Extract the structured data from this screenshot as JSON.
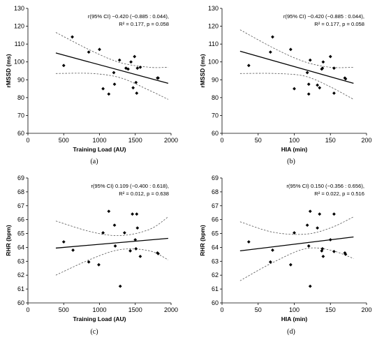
{
  "chart_data": [
    {
      "type": "scatter",
      "panel_label": "(a)",
      "xlabel": "Training Load (AU)",
      "ylabel": "rMSSD (ms)",
      "xlim": [
        0,
        2000
      ],
      "ylim": [
        60,
        130
      ],
      "xticks": [
        0,
        500,
        1000,
        1500,
        2000
      ],
      "yticks": [
        60,
        70,
        80,
        90,
        100,
        110,
        120,
        130
      ],
      "annotation_lines": [
        "r(95% CI) −0.420 (−0.885 : 0.044),",
        "R² = 0.177, p = 0.058"
      ],
      "points": [
        {
          "x": 500,
          "y": 98
        },
        {
          "x": 620,
          "y": 114
        },
        {
          "x": 850,
          "y": 105.5
        },
        {
          "x": 1000,
          "y": 107
        },
        {
          "x": 1050,
          "y": 85
        },
        {
          "x": 1130,
          "y": 82
        },
        {
          "x": 1200,
          "y": 94
        },
        {
          "x": 1210,
          "y": 87.5
        },
        {
          "x": 1280,
          "y": 101
        },
        {
          "x": 1370,
          "y": 96.5
        },
        {
          "x": 1400,
          "y": 96
        },
        {
          "x": 1440,
          "y": 100
        },
        {
          "x": 1470,
          "y": 85.5
        },
        {
          "x": 1490,
          "y": 103
        },
        {
          "x": 1510,
          "y": 88.5
        },
        {
          "x": 1530,
          "y": 96.5
        },
        {
          "x": 1570,
          "y": 97
        },
        {
          "x": 1520,
          "y": 82.5
        },
        {
          "x": 1810,
          "y": 91
        },
        {
          "x": 1820,
          "y": 91
        }
      ],
      "fit_line": [
        {
          "x": 390,
          "y": 105
        },
        {
          "x": 1960,
          "y": 88
        }
      ],
      "ci_upper": [
        {
          "x": 390,
          "y": 116.5
        },
        {
          "x": 900,
          "y": 106
        },
        {
          "x": 1300,
          "y": 99.5
        },
        {
          "x": 1700,
          "y": 97
        },
        {
          "x": 1960,
          "y": 97
        }
      ],
      "ci_lower": [
        {
          "x": 390,
          "y": 93.5
        },
        {
          "x": 900,
          "y": 93.5
        },
        {
          "x": 1300,
          "y": 91
        },
        {
          "x": 1700,
          "y": 84
        },
        {
          "x": 1960,
          "y": 79
        }
      ]
    },
    {
      "type": "scatter",
      "panel_label": "(b)",
      "xlabel": "HIA (min)",
      "ylabel": "rMSSD (ms)",
      "xlim": [
        0,
        200
      ],
      "ylim": [
        60,
        130
      ],
      "xticks": [
        0,
        50,
        100,
        150,
        200
      ],
      "yticks": [
        60,
        70,
        80,
        90,
        100,
        110,
        120,
        130
      ],
      "annotation_lines": [
        "r(95% CI) −0.420 (−0.885 : 0.044),",
        "R² = 0.177, p = 0.058"
      ],
      "points": [
        {
          "x": 37,
          "y": 98
        },
        {
          "x": 67,
          "y": 105.5
        },
        {
          "x": 70,
          "y": 114
        },
        {
          "x": 95,
          "y": 107
        },
        {
          "x": 100,
          "y": 85
        },
        {
          "x": 118,
          "y": 94
        },
        {
          "x": 120,
          "y": 87.5
        },
        {
          "x": 120,
          "y": 82
        },
        {
          "x": 122,
          "y": 101
        },
        {
          "x": 132,
          "y": 87
        },
        {
          "x": 135,
          "y": 85.5
        },
        {
          "x": 138,
          "y": 96
        },
        {
          "x": 139,
          "y": 96.5
        },
        {
          "x": 140,
          "y": 100
        },
        {
          "x": 150,
          "y": 103
        },
        {
          "x": 155,
          "y": 96.5
        },
        {
          "x": 155,
          "y": 82.5
        },
        {
          "x": 170,
          "y": 91
        },
        {
          "x": 171,
          "y": 90.5
        }
      ],
      "fit_line": [
        {
          "x": 25,
          "y": 106
        },
        {
          "x": 182,
          "y": 88
        }
      ],
      "ci_upper": [
        {
          "x": 25,
          "y": 118
        },
        {
          "x": 75,
          "y": 107
        },
        {
          "x": 115,
          "y": 100
        },
        {
          "x": 150,
          "y": 97
        },
        {
          "x": 182,
          "y": 97
        }
      ],
      "ci_lower": [
        {
          "x": 25,
          "y": 93.5
        },
        {
          "x": 75,
          "y": 93.5
        },
        {
          "x": 115,
          "y": 92
        },
        {
          "x": 150,
          "y": 86
        },
        {
          "x": 182,
          "y": 79
        }
      ]
    },
    {
      "type": "scatter",
      "panel_label": "(c)",
      "xlabel": "Training Load (AU)",
      "ylabel": "RHR (bpm)",
      "xlim": [
        0,
        2000
      ],
      "ylim": [
        60,
        69
      ],
      "xticks": [
        0,
        500,
        1000,
        1500,
        2000
      ],
      "yticks": [
        60,
        61,
        62,
        63,
        64,
        65,
        66,
        67,
        68,
        69
      ],
      "annotation_lines": [
        "r(95% CI) 0.109 (−0.400 : 0.618),",
        "R² = 0.012, p = 0.638"
      ],
      "points": [
        {
          "x": 500,
          "y": 64.4
        },
        {
          "x": 630,
          "y": 63.8
        },
        {
          "x": 850,
          "y": 62.95
        },
        {
          "x": 990,
          "y": 62.75
        },
        {
          "x": 1050,
          "y": 65.05
        },
        {
          "x": 1130,
          "y": 66.6
        },
        {
          "x": 1210,
          "y": 65.6
        },
        {
          "x": 1220,
          "y": 64.1
        },
        {
          "x": 1290,
          "y": 61.2
        },
        {
          "x": 1350,
          "y": 65.05
        },
        {
          "x": 1430,
          "y": 63.75
        },
        {
          "x": 1460,
          "y": 66.4
        },
        {
          "x": 1500,
          "y": 64.55
        },
        {
          "x": 1510,
          "y": 63.9
        },
        {
          "x": 1520,
          "y": 66.4
        },
        {
          "x": 1530,
          "y": 65.4
        },
        {
          "x": 1570,
          "y": 63.35
        },
        {
          "x": 1810,
          "y": 63.6
        },
        {
          "x": 1820,
          "y": 63.55
        }
      ],
      "fit_line": [
        {
          "x": 390,
          "y": 63.95
        },
        {
          "x": 1960,
          "y": 64.65
        }
      ],
      "ci_upper": [
        {
          "x": 390,
          "y": 65.9
        },
        {
          "x": 900,
          "y": 65.1
        },
        {
          "x": 1300,
          "y": 64.85
        },
        {
          "x": 1700,
          "y": 65.3
        },
        {
          "x": 1960,
          "y": 66.2
        }
      ],
      "ci_lower": [
        {
          "x": 390,
          "y": 62
        },
        {
          "x": 900,
          "y": 63.2
        },
        {
          "x": 1300,
          "y": 63.85
        },
        {
          "x": 1700,
          "y": 63.75
        },
        {
          "x": 1960,
          "y": 63.1
        }
      ]
    },
    {
      "type": "scatter",
      "panel_label": "(d)",
      "xlabel": "HIA (min)",
      "ylabel": "RHR (bpm)",
      "xlim": [
        0,
        200
      ],
      "ylim": [
        60,
        69
      ],
      "xticks": [
        0,
        50,
        100,
        150,
        200
      ],
      "yticks": [
        60,
        61,
        62,
        63,
        64,
        65,
        66,
        67,
        68,
        69
      ],
      "annotation_lines": [
        "r(95% CI) 0.150 (−0.356 : 0.656),",
        "R² = 0.022, p = 0.516"
      ],
      "points": [
        {
          "x": 37,
          "y": 64.4
        },
        {
          "x": 67,
          "y": 62.95
        },
        {
          "x": 70,
          "y": 63.8
        },
        {
          "x": 95,
          "y": 62.75
        },
        {
          "x": 100,
          "y": 65.05
        },
        {
          "x": 118,
          "y": 65.6
        },
        {
          "x": 120,
          "y": 64.1
        },
        {
          "x": 122,
          "y": 66.6
        },
        {
          "x": 122,
          "y": 61.2
        },
        {
          "x": 132,
          "y": 65.4
        },
        {
          "x": 135,
          "y": 66.4
        },
        {
          "x": 138,
          "y": 63.75
        },
        {
          "x": 139,
          "y": 63.9
        },
        {
          "x": 140,
          "y": 63.35
        },
        {
          "x": 150,
          "y": 64.55
        },
        {
          "x": 155,
          "y": 66.4
        },
        {
          "x": 155,
          "y": 63.7
        },
        {
          "x": 170,
          "y": 63.6
        },
        {
          "x": 171,
          "y": 63.5
        }
      ],
      "fit_line": [
        {
          "x": 25,
          "y": 63.75
        },
        {
          "x": 182,
          "y": 64.75
        }
      ],
      "ci_upper": [
        {
          "x": 25,
          "y": 65.85
        },
        {
          "x": 70,
          "y": 65.1
        },
        {
          "x": 115,
          "y": 64.95
        },
        {
          "x": 150,
          "y": 65.4
        },
        {
          "x": 182,
          "y": 66.2
        }
      ],
      "ci_lower": [
        {
          "x": 25,
          "y": 61.6
        },
        {
          "x": 70,
          "y": 62.9
        },
        {
          "x": 115,
          "y": 63.9
        },
        {
          "x": 150,
          "y": 63.8
        },
        {
          "x": 182,
          "y": 63.2
        }
      ]
    }
  ]
}
